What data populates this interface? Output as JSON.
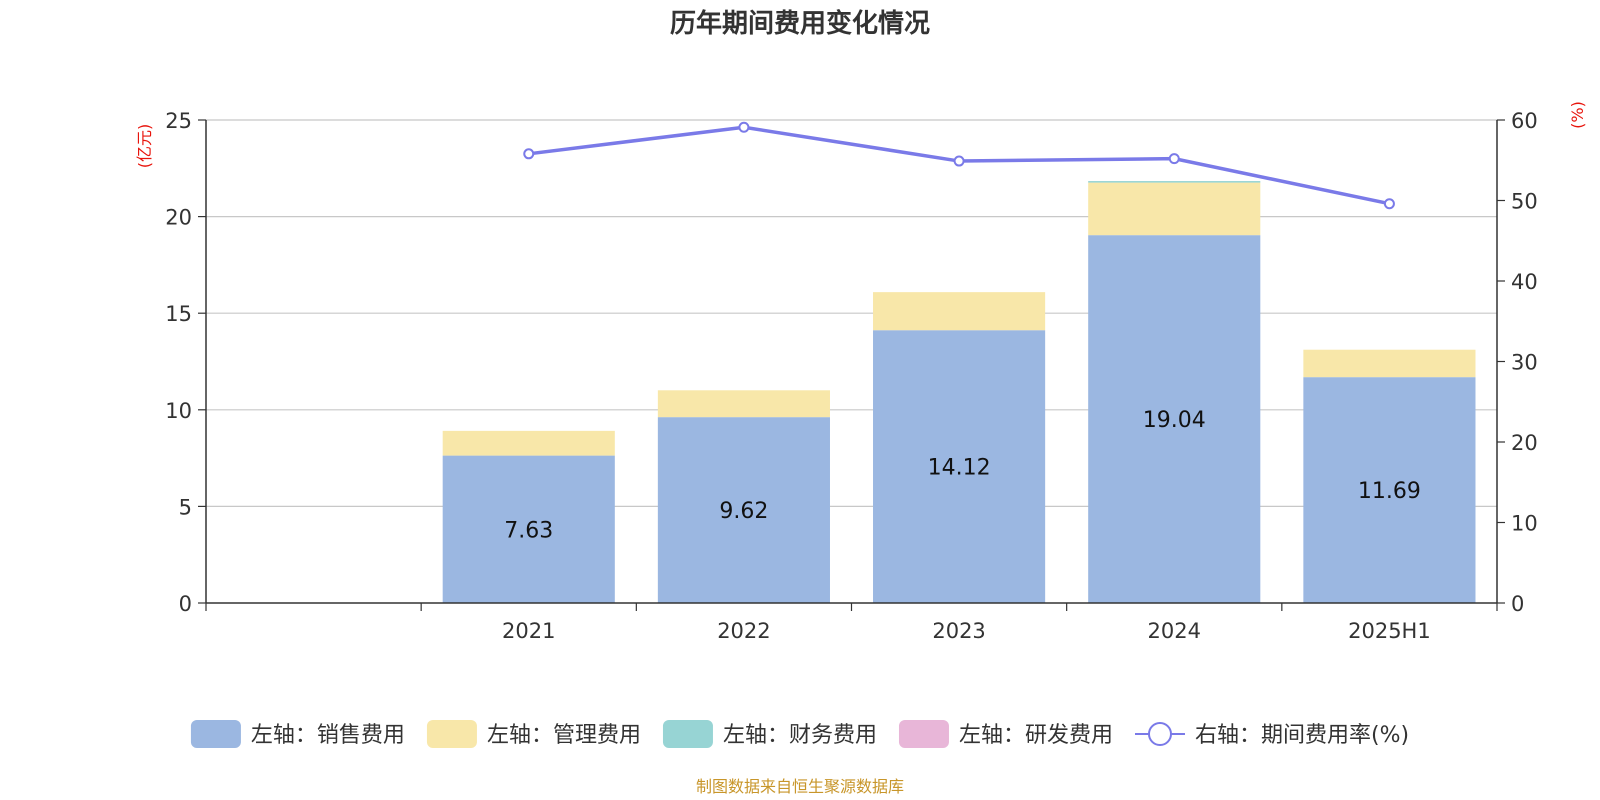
{
  "chart_data": {
    "type": "bar",
    "title": "历年期间费用变化情况",
    "categories": [
      "",
      "2021",
      "2022",
      "2023",
      "2024",
      "2025H1"
    ],
    "left_axis": {
      "unit": "(亿元)",
      "ylim": [
        0,
        25
      ],
      "ticks": [
        0,
        5,
        10,
        15,
        20,
        25
      ]
    },
    "right_axis": {
      "unit": "(%)",
      "ylim": [
        0,
        60
      ],
      "ticks": [
        0,
        10,
        20,
        30,
        40,
        50,
        60
      ]
    },
    "grid": true,
    "legend_position": "bottom",
    "series": [
      {
        "name": "左轴：销售费用",
        "type": "bar",
        "axis": "left",
        "color": "#9bb7e1",
        "values": [
          null,
          7.63,
          9.62,
          14.12,
          19.04,
          11.69
        ],
        "labels": [
          "",
          "7.63",
          "9.62",
          "14.12",
          "19.04",
          "11.69"
        ]
      },
      {
        "name": "左轴：管理费用",
        "type": "bar",
        "axis": "left",
        "color": "#f8e7a9",
        "values": [
          null,
          1.28,
          1.39,
          1.97,
          2.72,
          1.42
        ]
      },
      {
        "name": "左轴：财务费用",
        "type": "bar",
        "axis": "left",
        "color": "#97d4d4",
        "values": [
          null,
          0.0,
          0.0,
          0.0,
          0.08,
          0.0
        ]
      },
      {
        "name": "左轴：研发费用",
        "type": "bar",
        "axis": "left",
        "color": "#e8b6d8",
        "values": [
          null,
          0,
          0,
          0,
          0,
          0
        ]
      },
      {
        "name": "右轴：期间费用率(%)",
        "type": "line",
        "axis": "right",
        "color": "#7a7ae8",
        "values": [
          null,
          55.8,
          59.1,
          54.9,
          55.2,
          49.6
        ]
      }
    ],
    "source": "制图数据来自恒生聚源数据库"
  }
}
